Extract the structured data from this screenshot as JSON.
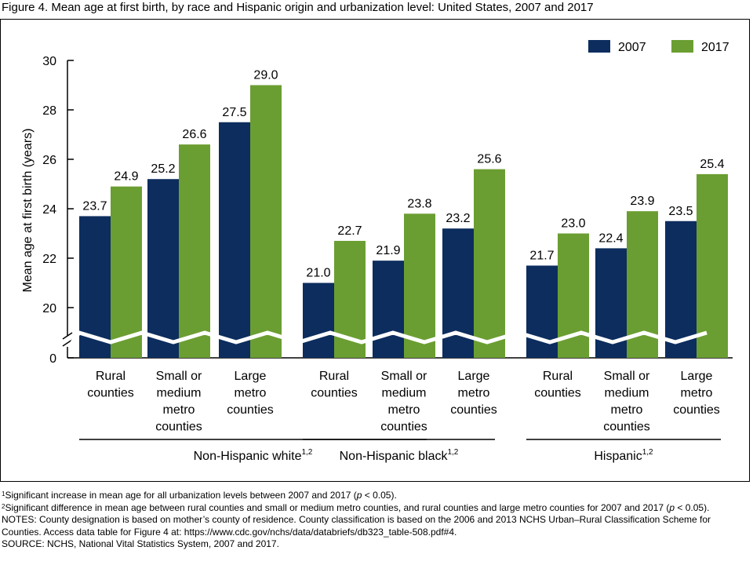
{
  "title": "Figure 4. Mean age at first birth, by race and Hispanic origin and urbanization level: United States, 2007 and 2017",
  "colors": {
    "2007": "#0c2d5e",
    "2017": "#6b9e32"
  },
  "chart_data": {
    "type": "bar",
    "ylabel": "Mean age at first birth (years)",
    "yticks": [
      "0",
      "20",
      "22",
      "24",
      "26",
      "28",
      "30"
    ],
    "ylim": [
      19,
      30
    ],
    "axis_break": true,
    "legend_position": "top-right",
    "groups": [
      {
        "label": "Non-Hispanic white",
        "label_sup": "1,2",
        "categories": [
          [
            "Rural",
            "counties"
          ],
          [
            "Small or",
            "medium",
            "metro",
            "counties"
          ],
          [
            "Large",
            "metro",
            "counties"
          ]
        ],
        "series": [
          {
            "name": "2007",
            "values": [
              23.7,
              25.2,
              27.5
            ],
            "labels": [
              "23.7",
              "25.2",
              "27.5"
            ]
          },
          {
            "name": "2017",
            "values": [
              24.9,
              26.6,
              29.0
            ],
            "labels": [
              "24.9",
              "26.6",
              "29.0"
            ]
          }
        ]
      },
      {
        "label": "Non-Hispanic black",
        "label_sup": "1,2",
        "categories": [
          [
            "Rural",
            "counties"
          ],
          [
            "Small or",
            "medium",
            "metro",
            "counties"
          ],
          [
            "Large",
            "metro",
            "counties"
          ]
        ],
        "series": [
          {
            "name": "2007",
            "values": [
              21.0,
              21.9,
              23.2
            ],
            "labels": [
              "21.0",
              "21.9",
              "23.2"
            ]
          },
          {
            "name": "2017",
            "values": [
              22.7,
              23.8,
              25.6
            ],
            "labels": [
              "22.7",
              "23.8",
              "25.6"
            ]
          }
        ]
      },
      {
        "label": "Hispanic",
        "label_sup": "1,2",
        "categories": [
          [
            "Rural",
            "counties"
          ],
          [
            "Small or",
            "medium",
            "metro",
            "counties"
          ],
          [
            "Large",
            "metro",
            "counties"
          ]
        ],
        "series": [
          {
            "name": "2007",
            "values": [
              21.7,
              22.4,
              23.5
            ],
            "labels": [
              "21.7",
              "22.4",
              "23.5"
            ]
          },
          {
            "name": "2017",
            "values": [
              23.0,
              23.9,
              25.4
            ],
            "labels": [
              "23.0",
              "23.9",
              "25.4"
            ]
          }
        ]
      }
    ]
  },
  "footnotes": {
    "fn1_sup": "1",
    "fn1": "Significant increase in mean age for all urbanization levels between 2007 and 2017 (",
    "fn1_p": "p",
    "fn1_end": " < 0.05).",
    "fn2_sup": "2",
    "fn2": "Significant difference in mean age between rural counties and small or medium metro counties, and rural counties and large metro counties for 2007 and 2017 (",
    "fn2_p": "p",
    "fn2_end": " < 0.05).",
    "notes": "NOTES: County designation is based on mother’s county of residence. County classification is based on the 2006 and 2013 NCHS Urban–Rural Classification Scheme for Counties. Access data table for Figure 4 at: https://www.cdc.gov/nchs/data/databriefs/db323_table-508.pdf#4.",
    "source": "SOURCE: NCHS, National Vital Statistics System, 2007 and 2017."
  }
}
